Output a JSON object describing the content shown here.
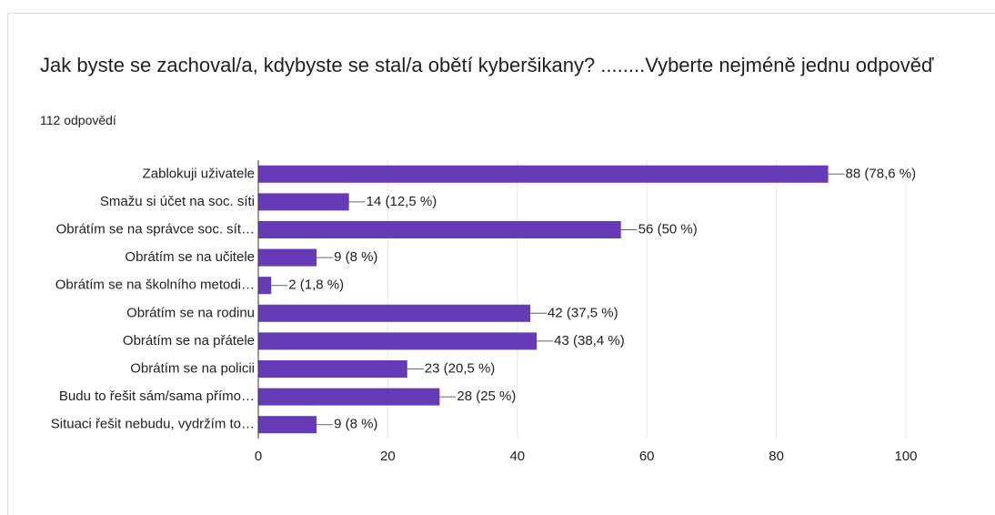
{
  "chart_data": {
    "type": "bar",
    "orientation": "horizontal",
    "title": "Jak byste se zachoval/a, kdybyste se stal/a obětí kyberšikany? ........Vyberte nejméně jednu odpověď",
    "subtitle": "112 odpovědí",
    "categories": [
      "Zablokuji uživatele",
      "Smažu si účet na soc. síti",
      "Obrátím se na správce soc. sít…",
      "Obrátím se na učitele",
      "Obrátím se na školního metodi…",
      "Obrátím se na rodinu",
      "Obrátím se na přátele",
      "Obrátím se na policii",
      "Budu to řešit sám/sama přímo…",
      "Situaci řešit nebudu, vydržím to…"
    ],
    "values": [
      88,
      14,
      56,
      9,
      2,
      42,
      43,
      23,
      28,
      9
    ],
    "value_labels": [
      "88 (78,6 %)",
      "14 (12,5 %)",
      "56 (50 %)",
      "9 (8 %)",
      "2 (1,8 %)",
      "42 (37,5 %)",
      "43 (38,4 %)",
      "23 (20,5 %)",
      "28 (25 %)",
      "9 (8 %)"
    ],
    "color": "#673ab7",
    "xlim": [
      0,
      100
    ],
    "xticks": [
      0,
      20,
      40,
      60,
      80,
      100
    ],
    "grid": true
  }
}
